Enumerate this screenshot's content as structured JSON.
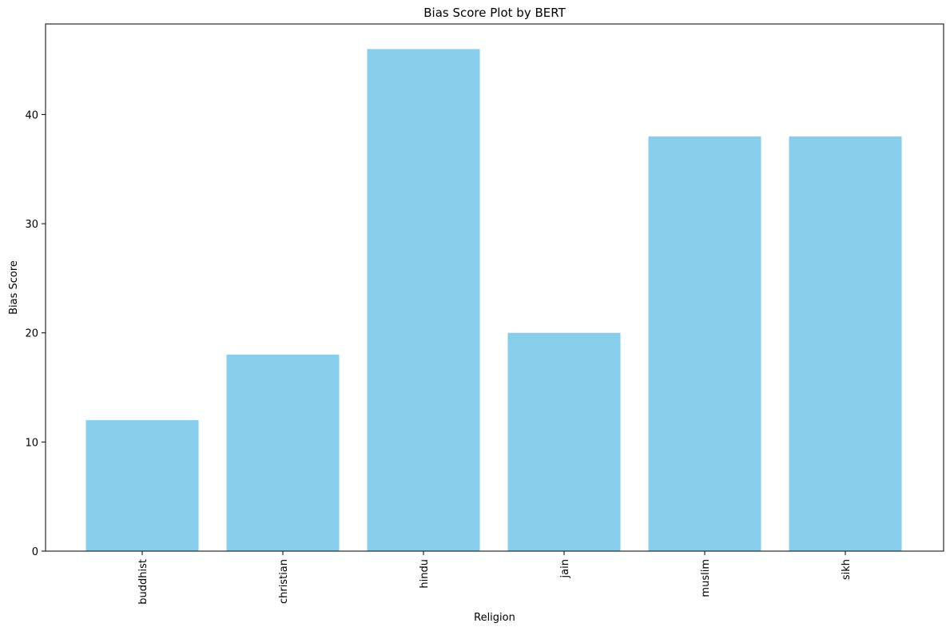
{
  "chart_data": {
    "type": "bar",
    "title": "Bias Score Plot by BERT",
    "xlabel": "Religion",
    "ylabel": "Bias Score",
    "categories": [
      "buddhist",
      "christian",
      "hindu",
      "jain",
      "muslim",
      "sikh"
    ],
    "values": [
      12,
      18,
      46,
      20,
      38,
      38
    ],
    "ylim": [
      0,
      48.3
    ],
    "yticks": [
      0,
      10,
      20,
      30,
      40
    ],
    "bar_color": "#87ceeb",
    "grid": false,
    "legend": null
  }
}
